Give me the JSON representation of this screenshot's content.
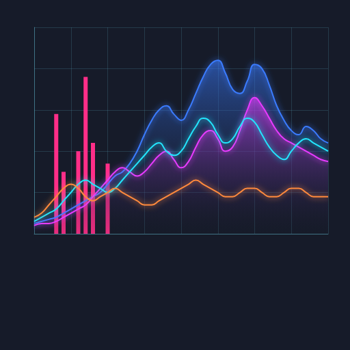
{
  "chart_data": {
    "type": "line",
    "x": [
      0,
      1,
      2,
      3,
      4,
      5,
      6,
      7,
      8,
      9,
      10,
      11,
      12,
      13,
      14,
      15,
      16,
      17,
      18,
      19,
      20,
      21,
      22,
      23,
      24,
      25,
      26,
      27,
      28,
      29,
      30,
      31,
      32,
      33,
      34,
      35,
      36,
      37,
      38,
      39,
      40
    ],
    "series": [
      {
        "type": "bar",
        "color": "#ff2e88",
        "values": [
          null,
          null,
          null,
          58,
          30,
          null,
          40,
          76,
          44,
          null,
          34,
          null,
          null,
          null,
          null,
          null,
          null,
          null,
          null,
          null,
          null,
          null,
          null,
          null,
          null,
          null,
          null,
          null,
          null,
          null,
          null,
          null,
          null,
          null,
          null,
          null,
          null,
          null,
          null,
          null,
          null
        ]
      },
      {
        "type": "area",
        "color": "#3a7bff",
        "values": [
          5,
          6,
          7,
          8,
          10,
          12,
          14,
          16,
          18,
          20,
          24,
          28,
          30,
          34,
          40,
          48,
          55,
          60,
          62,
          58,
          55,
          60,
          68,
          76,
          82,
          84,
          78,
          70,
          68,
          74,
          82,
          80,
          72,
          62,
          55,
          50,
          48,
          52,
          50,
          46,
          44
        ]
      },
      {
        "type": "area",
        "color": "#e83aff",
        "values": [
          4,
          5,
          5,
          6,
          8,
          10,
          12,
          14,
          18,
          22,
          26,
          30,
          32,
          30,
          28,
          30,
          34,
          38,
          40,
          36,
          32,
          35,
          42,
          48,
          50,
          46,
          40,
          42,
          50,
          60,
          66,
          62,
          56,
          50,
          46,
          44,
          42,
          40,
          38,
          36,
          35
        ]
      },
      {
        "type": "line",
        "color": "#22e6ff",
        "values": [
          6,
          8,
          10,
          12,
          16,
          20,
          24,
          26,
          24,
          22,
          20,
          22,
          26,
          30,
          34,
          38,
          42,
          44,
          40,
          38,
          40,
          46,
          52,
          56,
          54,
          48,
          44,
          46,
          52,
          56,
          54,
          48,
          42,
          38,
          36,
          40,
          44,
          46,
          44,
          42,
          40
        ]
      },
      {
        "type": "line",
        "color": "#ff8a3d",
        "values": [
          8,
          10,
          14,
          18,
          22,
          24,
          22,
          18,
          16,
          18,
          20,
          22,
          20,
          18,
          16,
          14,
          14,
          16,
          18,
          20,
          22,
          24,
          26,
          24,
          22,
          20,
          18,
          18,
          20,
          22,
          22,
          20,
          18,
          18,
          20,
          22,
          22,
          20,
          18,
          18,
          18
        ]
      }
    ],
    "xlim": [
      0,
      40
    ],
    "xticks": [
      0,
      5,
      10,
      15,
      20,
      25,
      30,
      35,
      40
    ],
    "ylim": [
      0,
      100
    ],
    "yticks": [
      0,
      20,
      40,
      60,
      80,
      100
    ],
    "grid": true,
    "tick_labels": false
  }
}
